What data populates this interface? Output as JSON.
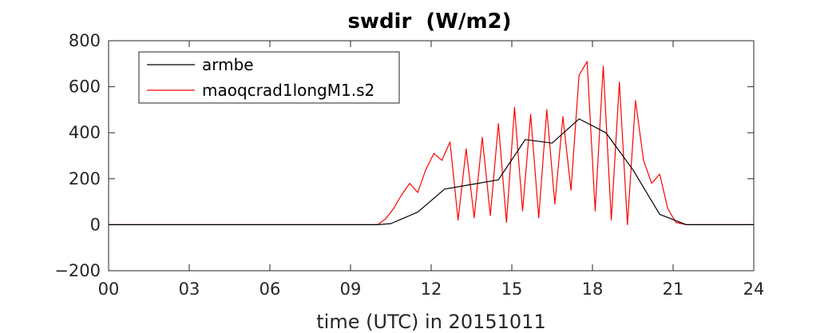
{
  "chart_data": {
    "type": "line",
    "title": "swdir  (W/m2)",
    "xlabel": "time (UTC) in 20151011",
    "ylabel": "",
    "xlim": [
      0,
      24
    ],
    "ylim": [
      -200,
      800
    ],
    "xticks": [
      0,
      3,
      6,
      9,
      12,
      15,
      18,
      21,
      24
    ],
    "xtick_labels": [
      "00",
      "03",
      "06",
      "09",
      "12",
      "15",
      "18",
      "21",
      "24"
    ],
    "yticks": [
      -200,
      0,
      200,
      400,
      600,
      800
    ],
    "ytick_labels": [
      "−200",
      "0",
      "200",
      "400",
      "600",
      "800"
    ],
    "grid": false,
    "legend_position": "top-left",
    "series": [
      {
        "name": "armbe",
        "color": "#000000",
        "x": [
          0,
          10.0,
          10.5,
          11.5,
          12.5,
          13.5,
          14.5,
          15.5,
          16.5,
          17.5,
          18.5,
          19.5,
          20.5,
          21.5,
          24
        ],
        "y": [
          0,
          0,
          5,
          55,
          155,
          175,
          195,
          370,
          355,
          460,
          400,
          240,
          45,
          0,
          0
        ]
      },
      {
        "name": "maoqcrad1longM1.s2",
        "color": "#ff0000",
        "x": [
          0,
          10.0,
          10.3,
          10.6,
          10.9,
          11.2,
          11.5,
          11.8,
          12.1,
          12.4,
          12.7,
          13.0,
          13.3,
          13.6,
          13.9,
          14.2,
          14.5,
          14.8,
          15.1,
          15.4,
          15.7,
          16.0,
          16.3,
          16.6,
          16.9,
          17.2,
          17.5,
          17.8,
          18.1,
          18.4,
          18.7,
          19.0,
          19.3,
          19.6,
          19.9,
          20.2,
          20.5,
          20.8,
          21.1,
          21.5,
          24
        ],
        "y": [
          0,
          0,
          25,
          70,
          130,
          180,
          140,
          240,
          310,
          280,
          360,
          20,
          330,
          30,
          380,
          40,
          440,
          10,
          510,
          60,
          480,
          30,
          500,
          90,
          470,
          150,
          650,
          710,
          60,
          690,
          20,
          620,
          0,
          540,
          280,
          180,
          220,
          70,
          10,
          0,
          0
        ]
      }
    ]
  }
}
